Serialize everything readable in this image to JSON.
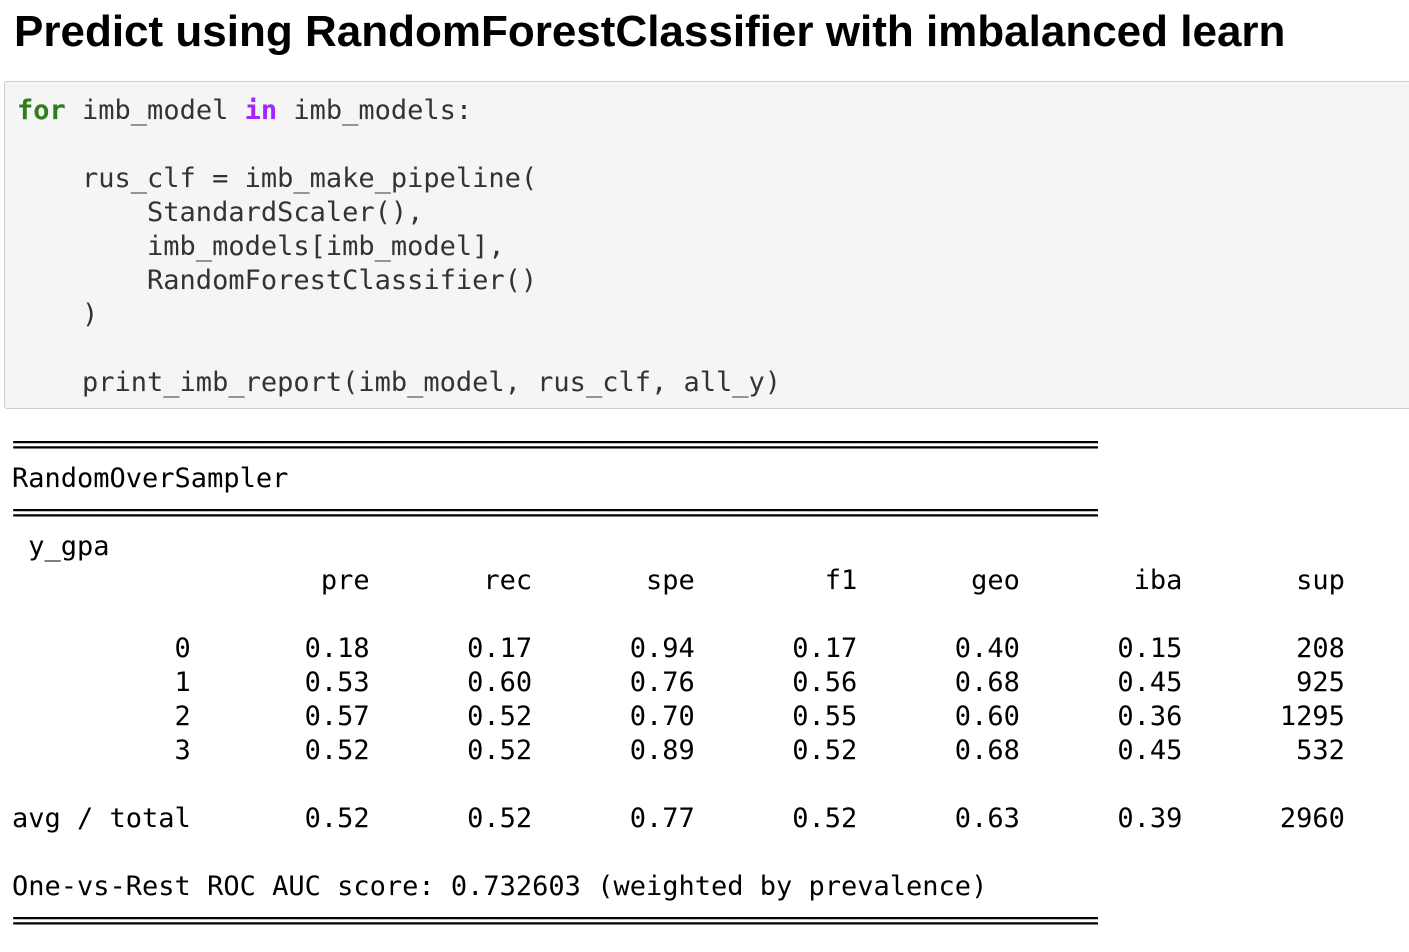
{
  "heading": "Predict using RandomForestClassifier with imbalanced learn",
  "code": {
    "kw_for": "for",
    "line1_a": " imb_model ",
    "kw_in": "in",
    "line1_b": " imb_models:",
    "line2": "",
    "line3": "    rus_clf = imb_make_pipeline(",
    "line4": "        StandardScaler(),",
    "line5": "        imb_models[imb_model],",
    "line6": "        RandomForestClassifier()",
    "line7": "    )",
    "line8": "",
    "line9": "    print_imb_report(imb_model, rus_clf, all_y)"
  },
  "output": {
    "separator": "================================================================================",
    "model_name": "RandomOverSampler",
    "report_label": " y_gpa",
    "header_row": "                   pre       rec       spe        f1       geo       iba       sup",
    "rows": [
      "          0       0.18      0.17      0.94      0.17      0.40      0.15       208",
      "          1       0.53      0.60      0.76      0.56      0.68      0.45       925",
      "          2       0.57      0.52      0.70      0.55      0.60      0.36      1295",
      "          3       0.52      0.52      0.89      0.52      0.68      0.45       532"
    ],
    "avg_row": "avg / total       0.52      0.52      0.77      0.52      0.63      0.39      2960",
    "roc_line": "One-vs-Rest ROC AUC score: 0.732603 (weighted by prevalence)"
  }
}
